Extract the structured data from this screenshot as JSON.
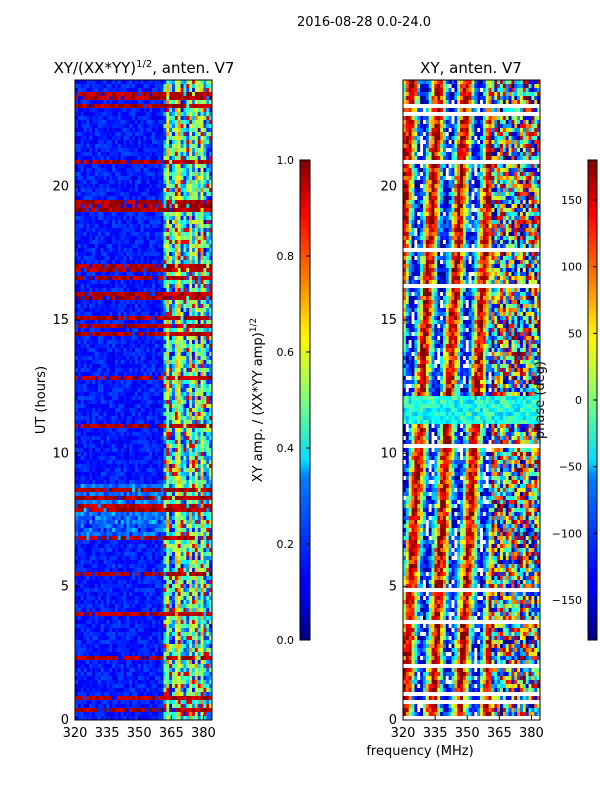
{
  "figure_title": "2016-08-28 0.0-24.0",
  "shared_xlabel": "frequency (MHz)",
  "chart_data": [
    {
      "type": "heatmap",
      "title": "XY/(XX*YY)",
      "title_superscript": "1/2",
      "title_suffix": ", anten. V7",
      "xlabel": "",
      "ylabel": "UT (hours)",
      "xlim": [
        320,
        384
      ],
      "ylim": [
        0,
        24
      ],
      "x_ticks": [
        320,
        335,
        350,
        365,
        380
      ],
      "y_ticks": [
        0,
        5,
        10,
        15,
        20
      ],
      "colorbar": {
        "label": "XY amp. / (XX*YY amp)",
        "label_superscript": "1/2",
        "range": [
          0.0,
          1.0
        ],
        "ticks": [
          "0.0",
          "0.2",
          "0.4",
          "0.6",
          "0.8",
          "1.0"
        ],
        "tick_values": [
          0.0,
          0.2,
          0.4,
          0.6,
          0.8,
          1.0
        ]
      }
    },
    {
      "type": "heatmap",
      "title": "XY, anten. V7",
      "xlabel": "frequency (MHz)",
      "ylabel": "",
      "xlim": [
        320,
        384
      ],
      "ylim": [
        0,
        24
      ],
      "x_ticks": [
        320,
        335,
        350,
        365,
        380
      ],
      "y_ticks": [
        0,
        5,
        10,
        15,
        20
      ],
      "colorbar": {
        "label": "phase (deg)",
        "range": [
          -180,
          180
        ],
        "ticks": [
          "−150",
          "−100",
          "−50",
          "0",
          "50",
          "100",
          "150"
        ],
        "tick_values": [
          -150,
          -100,
          -50,
          0,
          50,
          100,
          150
        ]
      }
    }
  ]
}
